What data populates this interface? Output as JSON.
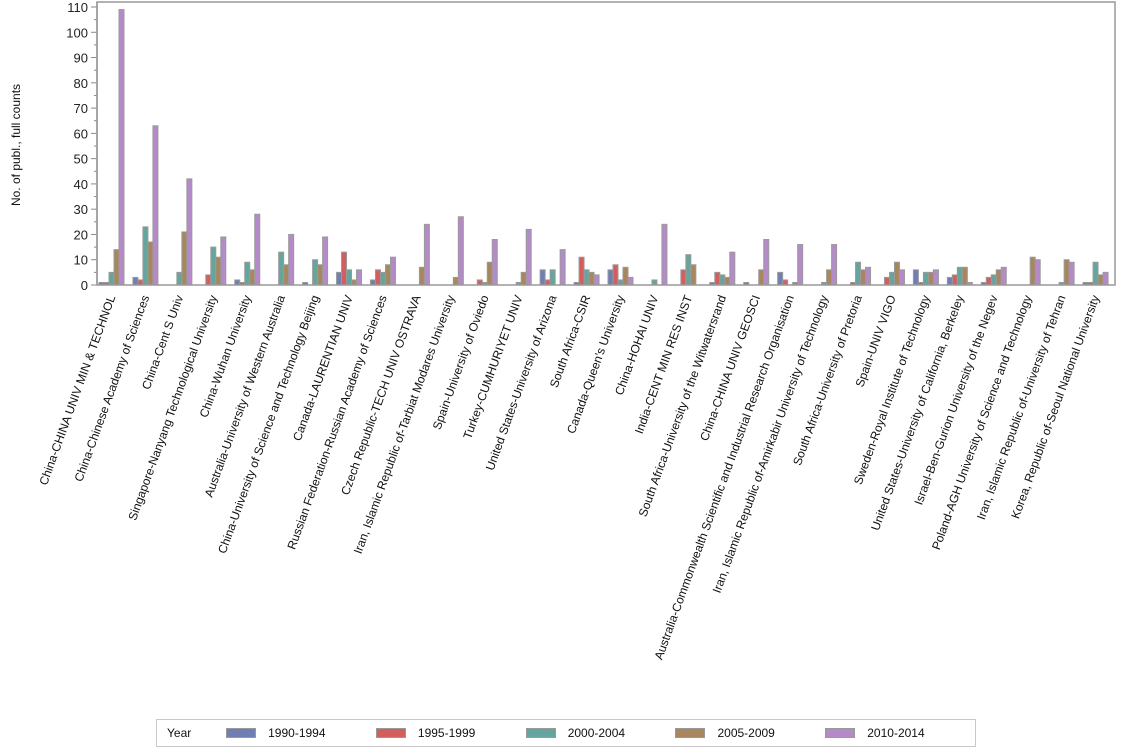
{
  "chart_data": {
    "type": "bar",
    "title": "",
    "xlabel": "",
    "ylabel": "No. of publ., full counts",
    "ylim": [
      0,
      110
    ],
    "yticks": [
      0,
      10,
      20,
      30,
      40,
      50,
      60,
      70,
      80,
      90,
      100,
      110
    ],
    "grid": false,
    "legend_position": "bottom",
    "legend_title": "Year",
    "categories": [
      "China-CHINA UNIV MIN & TECHNOL",
      "China-Chinese Academy of Sciences",
      "China-Cent S Univ",
      "Singapore-Nanyang Technological University",
      "China-Wuhan University",
      "Australia-University of Western Australia",
      "China-University of Science and Technology Beijing",
      "Canada-LAURENTIAN UNIV",
      "Russian Federation-Russian Academy of Sciences",
      "Czech Republic-TECH UNIV OSTRAVA",
      "Iran, Islamic Republic of-Tarbiat Modares University",
      "Spain-University of Oviedo",
      "Turkey-CUMHURIYET UNIV",
      "United States-University of Arizona",
      "South Africa-CSIR",
      "Canada-Queen's University",
      "China-HOHAI UNIV",
      "India-CENT MIN RES INST",
      "South Africa-University of the Witwatersrand",
      "China-CHINA UNIV GEOSCI",
      "Australia-Commonwealth Scientific and Industrial Research Organisation",
      "Iran, Islamic Republic of-Amirkabir University of Technology",
      "South Africa-University of Pretoria",
      "Spain-UNIV VIGO",
      "Sweden-Royal Institute of Technology",
      "United States-University of California, Berkeley",
      "Israel-Ben-Gurion University of the Negev",
      "Poland-AGH University of Science and Technology",
      "Iran, Islamic Republic of-University of Tehran",
      "Korea, Republic of-Seoul National University"
    ],
    "series": [
      {
        "name": "1990-1994",
        "color": "#6f7fb5",
        "values": [
          1,
          3,
          0,
          0,
          2,
          0,
          1,
          5,
          2,
          0,
          0,
          0,
          0,
          6,
          1,
          6,
          0,
          0,
          1,
          1,
          5,
          0,
          0,
          0,
          6,
          3,
          1,
          0,
          0,
          1
        ]
      },
      {
        "name": "1995-1999",
        "color": "#d45d5d",
        "values": [
          1,
          2,
          0,
          4,
          1,
          0,
          0,
          13,
          6,
          0,
          0,
          2,
          0,
          2,
          11,
          8,
          0,
          6,
          5,
          0,
          2,
          0,
          1,
          3,
          1,
          4,
          3,
          0,
          0,
          1
        ]
      },
      {
        "name": "2000-2004",
        "color": "#66a59d",
        "values": [
          5,
          23,
          5,
          15,
          9,
          13,
          10,
          6,
          5,
          0,
          0,
          1,
          1,
          6,
          6,
          2,
          2,
          12,
          4,
          0,
          0,
          1,
          9,
          5,
          5,
          7,
          4,
          0,
          1,
          9
        ]
      },
      {
        "name": "2005-2009",
        "color": "#a8875f",
        "values": [
          14,
          17,
          21,
          11,
          6,
          8,
          8,
          2,
          8,
          7,
          3,
          9,
          5,
          0,
          5,
          7,
          0,
          8,
          3,
          6,
          1,
          6,
          6,
          9,
          5,
          7,
          6,
          11,
          10,
          4
        ]
      },
      {
        "name": "2010-2014",
        "color": "#b58ac8",
        "values": [
          109,
          63,
          42,
          19,
          28,
          20,
          19,
          6,
          11,
          24,
          27,
          18,
          22,
          14,
          4,
          3,
          24,
          0,
          13,
          18,
          16,
          16,
          7,
          6,
          6,
          1,
          7,
          10,
          9,
          5
        ]
      }
    ]
  }
}
